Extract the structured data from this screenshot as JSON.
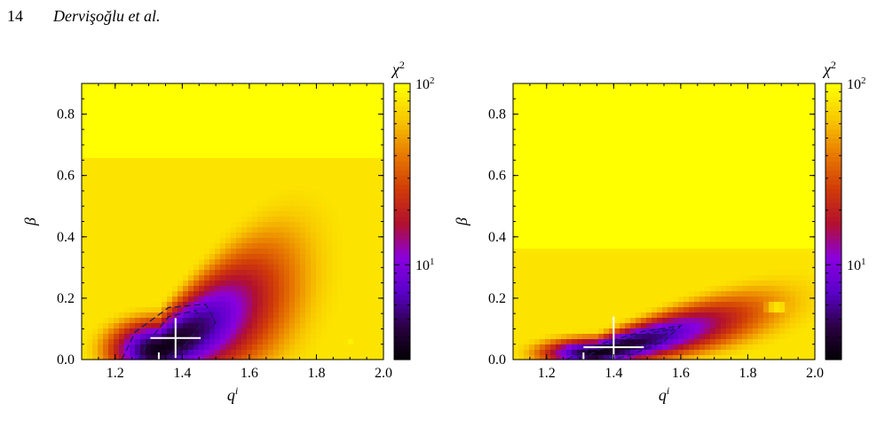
{
  "header": {
    "page_number": "14",
    "authors": "Dervişoğlu et al."
  },
  "colormap": {
    "stops": [
      "#000000",
      "#2a0040",
      "#5a00c8",
      "#8a00e0",
      "#b2102e",
      "#d03b08",
      "#e87a00",
      "#f8c600",
      "#ffff00"
    ],
    "contour_color": "#1a1a60",
    "marker_color": "#ffffff"
  },
  "chart_data": [
    {
      "type": "heatmap",
      "title": "",
      "xlabel": "q",
      "xlabel_sup": "i",
      "ylabel": "β",
      "xlim": [
        1.1,
        2.0
      ],
      "ylim": [
        0.0,
        0.9
      ],
      "xticks": [
        "1.2",
        "1.4",
        "1.6",
        "1.8",
        "2.0"
      ],
      "yticks": [
        "0.0",
        "0.2",
        "0.4",
        "0.6",
        "0.8"
      ],
      "colorbar": {
        "label": "χ",
        "label_sup": "2",
        "scale": "log",
        "range": [
          3,
          100
        ],
        "ticks": [
          {
            "base": "10",
            "exp": "1",
            "value": 10
          },
          {
            "base": "10",
            "exp": "2",
            "value": 100
          }
        ]
      },
      "field": {
        "min": {
          "q": 1.33,
          "beta": 0.03
        },
        "spread_q": [
          0.09,
          0.22
        ],
        "spread_beta": [
          0.06,
          0.3
        ],
        "slope": 0.55,
        "outer_beta": 0.55,
        "yellow_patch": {
          "q": 1.9,
          "beta": 0.06
        }
      },
      "best_fit": {
        "q": 1.38,
        "beta": 0.07,
        "dq": 0.075,
        "dbeta": 0.065
      },
      "secondary_marker": {
        "q": 1.33,
        "beta": 0.0
      },
      "confidence_contours": [
        [
          [
            1.27,
            0.0
          ],
          [
            1.3,
            0.06
          ],
          [
            1.36,
            0.14
          ],
          [
            1.44,
            0.16
          ],
          [
            1.46,
            0.12
          ],
          [
            1.41,
            0.05
          ],
          [
            1.34,
            0.0
          ]
        ],
        [
          [
            1.22,
            0.0
          ],
          [
            1.26,
            0.09
          ],
          [
            1.36,
            0.17
          ],
          [
            1.47,
            0.18
          ],
          [
            1.5,
            0.12
          ],
          [
            1.43,
            0.04
          ],
          [
            1.36,
            0.0
          ]
        ]
      ]
    },
    {
      "type": "heatmap",
      "title": "",
      "xlabel": "q",
      "xlabel_sup": "i",
      "ylabel": "β",
      "xlim": [
        1.1,
        2.0
      ],
      "ylim": [
        0.0,
        0.9
      ],
      "xticks": [
        "1.2",
        "1.4",
        "1.6",
        "1.8",
        "2.0"
      ],
      "yticks": [
        "0.0",
        "0.2",
        "0.4",
        "0.6",
        "0.8"
      ],
      "colorbar": {
        "label": "χ",
        "label_sup": "2",
        "scale": "log",
        "range": [
          3,
          100
        ],
        "ticks": [
          {
            "base": "10",
            "exp": "1",
            "value": 10
          },
          {
            "base": "10",
            "exp": "2",
            "value": 100
          }
        ]
      },
      "field": {
        "min": {
          "q": 1.35,
          "beta": 0.02
        },
        "spread_q": [
          0.1,
          0.28
        ],
        "spread_beta": [
          0.03,
          0.08
        ],
        "slope": 0.28,
        "outer_beta": 0.25,
        "yellow_patch": {
          "q": 1.89,
          "beta": 0.17
        }
      },
      "best_fit": {
        "q": 1.4,
        "beta": 0.04,
        "dq": 0.09,
        "dbeta": 0.1
      },
      "secondary_marker": {
        "q": 1.31,
        "beta": 0.0
      },
      "confidence_contours": [
        [
          [
            1.3,
            0.0
          ],
          [
            1.39,
            0.05
          ],
          [
            1.48,
            0.08
          ],
          [
            1.58,
            0.1
          ],
          [
            1.52,
            0.06
          ],
          [
            1.42,
            0.02
          ],
          [
            1.36,
            0.0
          ]
        ],
        [
          [
            1.26,
            0.0
          ],
          [
            1.36,
            0.05
          ],
          [
            1.48,
            0.09
          ],
          [
            1.6,
            0.11
          ],
          [
            1.55,
            0.06
          ],
          [
            1.44,
            0.01
          ],
          [
            1.38,
            0.0
          ]
        ]
      ]
    }
  ]
}
